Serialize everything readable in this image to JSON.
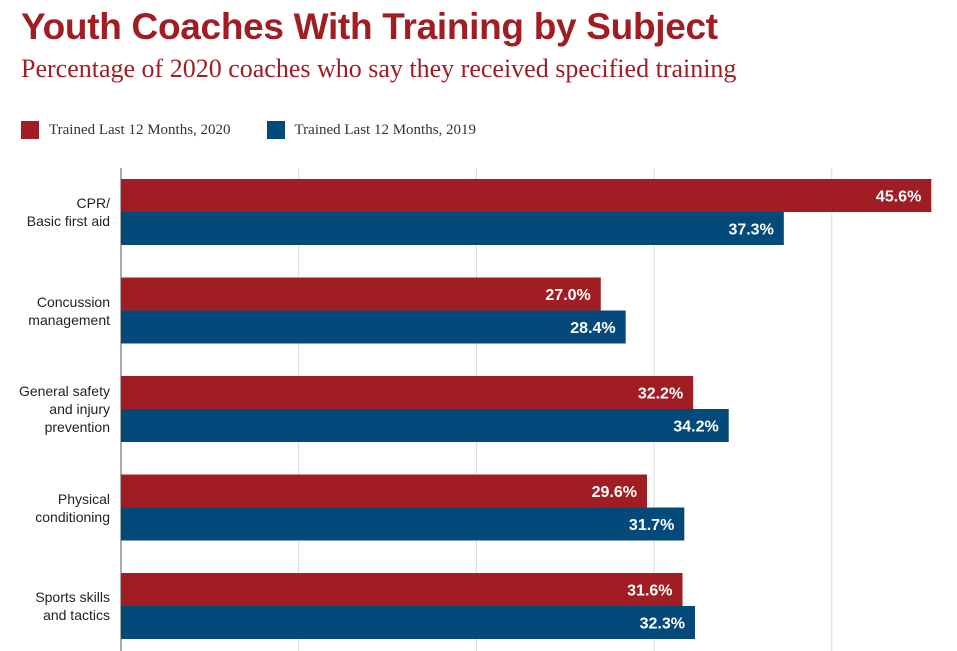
{
  "chart_data": {
    "type": "bar",
    "orientation": "horizontal",
    "title": "Youth Coaches With Training by Subject",
    "subtitle": "Percentage of 2020 coaches who say they received specified training",
    "categories": [
      [
        "CPR/",
        "Basic first aid"
      ],
      [
        "Concussion",
        "management"
      ],
      [
        "General safety",
        "and injury",
        "prevention"
      ],
      [
        "Physical",
        "conditioning"
      ],
      [
        "Sports skills",
        "and tactics"
      ]
    ],
    "series": [
      {
        "name": "Trained Last 12 Months, 2020",
        "color": "#a11d24",
        "values": [
          45.6,
          27.0,
          32.2,
          29.6,
          31.6
        ],
        "labels": [
          "45.6%",
          "27.0%",
          "32.2%",
          "29.6%",
          "31.6%"
        ]
      },
      {
        "name": "Trained Last 12 Months, 2019",
        "color": "#03497a",
        "values": [
          37.3,
          28.4,
          34.2,
          31.7,
          32.3
        ],
        "labels": [
          "37.3%",
          "28.4%",
          "34.2%",
          "31.7%",
          "32.3%"
        ]
      }
    ],
    "xlim": [
      0,
      50
    ],
    "grid": true,
    "legend_position": "top-left"
  },
  "colors": {
    "title": "#a11d24",
    "series_2020": "#a11d24",
    "series_2019": "#03497a",
    "grid": "#d9d9d9",
    "axis": "#555555"
  }
}
